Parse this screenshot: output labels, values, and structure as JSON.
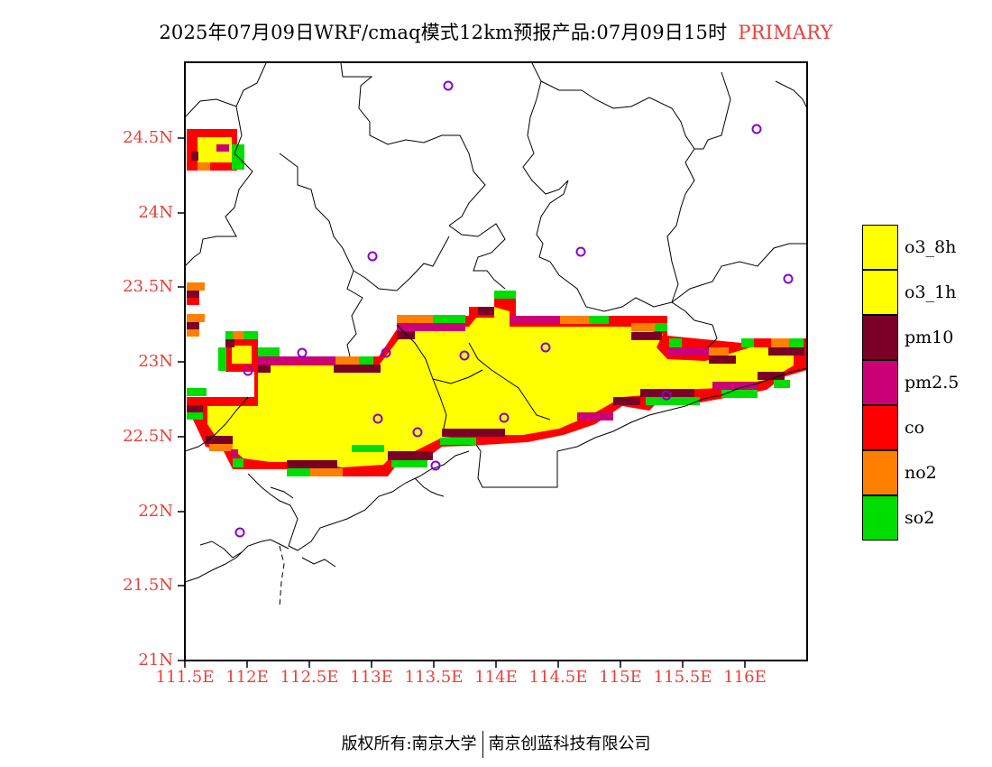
{
  "title": "2025年07月09日WRF/cmaq模式12km预报产品:07月09日15时",
  "title_tag": "PRIMARY",
  "lat_labels": [
    "24.5N",
    "24N",
    "23.5N",
    "23N",
    "22.5N",
    "22N",
    "21.5N",
    "21N"
  ],
  "lon_labels": [
    "111.5E",
    "112E",
    "112.5E",
    "113E",
    "113.5E",
    "114E",
    "114.5E",
    "115E",
    "115.5E",
    "116E"
  ],
  "legend": [
    {
      "label": "o3_8h",
      "color": "#ffff00"
    },
    {
      "label": "o3_1h",
      "color": "#ffff00"
    },
    {
      "label": "pm10",
      "color": "#7a0028"
    },
    {
      "label": "pm2.5",
      "color": "#cc0077"
    },
    {
      "label": "co",
      "color": "#ff0000"
    },
    {
      "label": "no2",
      "color": "#ff8000"
    },
    {
      "label": "so2",
      "color": "#00dd00"
    }
  ],
  "footer": {
    "left": "版权所有:南京大学",
    "right": "南京创蓝科技有限公司"
  }
}
